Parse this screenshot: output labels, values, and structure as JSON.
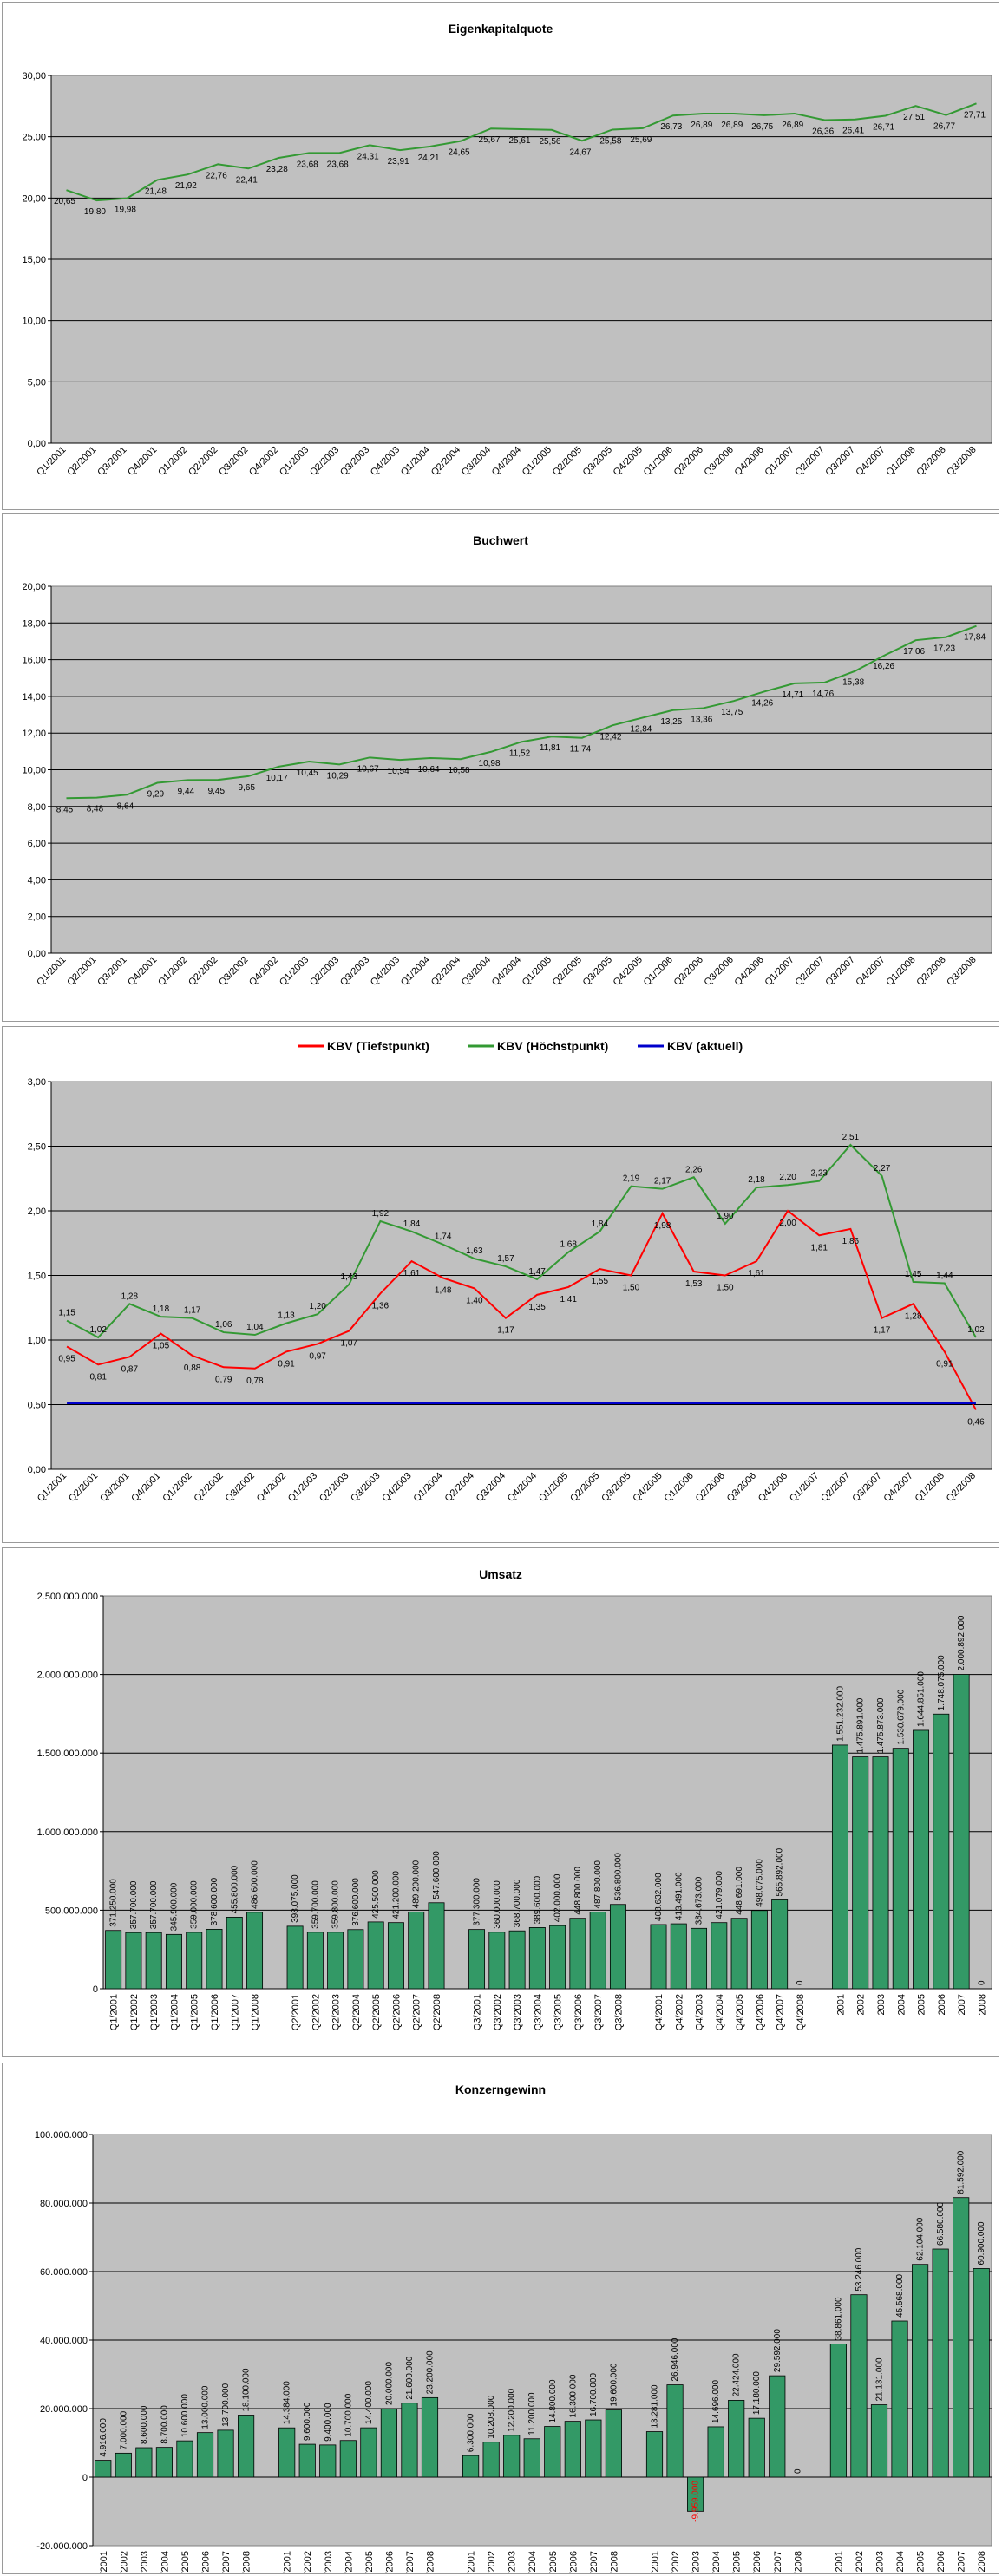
{
  "charts": [
    {
      "title": "Eigenkapitalquote",
      "chart_data": {
        "type": "line",
        "categories": [
          "Q1/2001",
          "Q2/2001",
          "Q3/2001",
          "Q4/2001",
          "Q1/2002",
          "Q2/2002",
          "Q3/2002",
          "Q4/2002",
          "Q1/2003",
          "Q2/2003",
          "Q3/2003",
          "Q4/2003",
          "Q1/2004",
          "Q2/2004",
          "Q3/2004",
          "Q4/2004",
          "Q1/2005",
          "Q2/2005",
          "Q3/2005",
          "Q4/2005",
          "Q1/2006",
          "Q2/2006",
          "Q3/2006",
          "Q4/2006",
          "Q1/2007",
          "Q2/2007",
          "Q3/2007",
          "Q4/2007",
          "Q1/2008",
          "Q2/2008",
          "Q3/2008"
        ],
        "x_tick_labels": [
          "Q1/2001",
          "Q2/2001",
          "Q3/2001",
          "Q4/2001",
          "Q1/2002",
          "Q2/2002",
          "Q3/2002",
          "Q4/2002",
          "Q1/2003",
          "Q2/2003",
          "Q3/2003",
          "Q4/2003",
          "Q1/2004",
          "Q2/2004",
          "Q3/2004",
          "Q4/2004",
          "Q1/2005",
          "Q2/2005",
          "Q3/2005",
          "Q4/2005",
          "Q1/2006",
          "Q2/2006",
          "Q3/2006",
          "Q4/2006",
          "Q1/2007",
          "Q2/2007",
          "Q3/2007",
          "Q4/2007",
          "Q1/2008",
          "Q2/2008",
          "Q3/2008"
        ],
        "series": [
          {
            "values": [
              20.65,
              19.8,
              19.98,
              21.48,
              21.92,
              22.76,
              22.41,
              23.28,
              23.68,
              23.68,
              24.31,
              23.91,
              24.21,
              24.65,
              25.67,
              25.61,
              25.56,
              24.67,
              25.58,
              25.69,
              26.73,
              26.89,
              26.89,
              26.75,
              26.89,
              26.36,
              26.41,
              26.71,
              27.51,
              26.77,
              27.71
            ],
            "labels": [
              "20,65",
              "19,80",
              "19,98",
              "21,48",
              "21,92",
              "22,76",
              "22,41",
              "23,28",
              "23,68",
              "23,68",
              "24,31",
              "23,91",
              "24,21",
              "24,65",
              "25,67",
              "25,61",
              "25,56",
              "24,67",
              "25,58",
              "25,69",
              "26,73",
              "26,89",
              "26,89",
              "26,75",
              "26,89",
              "26,36",
              "26,41",
              "26,71",
              "27,51",
              "26,77",
              "27,71"
            ],
            "color": "#339933"
          }
        ],
        "y_ticks": [
          "0,00",
          "5,00",
          "10,00",
          "15,00",
          "20,00",
          "25,00",
          "30,00"
        ],
        "ylim": [
          0,
          30
        ]
      }
    },
    {
      "title": "Buchwert",
      "chart_data": {
        "type": "line",
        "categories": [
          "Q1/2001",
          "Q2/2001",
          "Q3/2001",
          "Q4/2001",
          "Q1/2002",
          "Q2/2002",
          "Q3/2002",
          "Q4/2002",
          "Q1/2003",
          "Q2/2003",
          "Q3/2003",
          "Q4/2003",
          "Q1/2004",
          "Q2/2004",
          "Q3/2004",
          "Q4/2004",
          "Q1/2005",
          "Q2/2005",
          "Q3/2005",
          "Q4/2005",
          "Q1/2006",
          "Q2/2006",
          "Q3/2006",
          "Q4/2006",
          "Q1/2007",
          "Q2/2007",
          "Q3/2007",
          "Q4/2007",
          "Q1/2008",
          "Q2/2008",
          "Q3/2008"
        ],
        "x_tick_labels": [
          "Q1/2001",
          "Q2/2001",
          "Q3/2001",
          "Q4/2001",
          "Q1/2002",
          "Q2/2002",
          "Q3/2002",
          "Q4/2002",
          "Q1/2003",
          "Q2/2003",
          "Q3/2003",
          "Q4/2003",
          "Q1/2004",
          "Q2/2004",
          "Q3/2004",
          "Q4/2004",
          "Q1/2005",
          "Q2/2005",
          "Q3/2005",
          "Q4/2005",
          "Q1/2006",
          "Q2/2006",
          "Q3/2006",
          "Q4/2006",
          "Q1/2007",
          "Q2/2007",
          "Q3/2007",
          "Q4/2007",
          "Q1/2008",
          "Q2/2008",
          "Q3/2008"
        ],
        "series": [
          {
            "values": [
              8.45,
              8.48,
              8.64,
              9.29,
              9.44,
              9.45,
              9.65,
              10.17,
              10.45,
              10.29,
              10.67,
              10.54,
              10.64,
              10.58,
              10.98,
              11.52,
              11.81,
              11.74,
              12.42,
              12.84,
              13.25,
              13.36,
              13.75,
              14.26,
              14.71,
              14.76,
              15.38,
              16.26,
              17.06,
              17.23,
              17.84
            ],
            "labels": [
              "8,45",
              "8,48",
              "8,64",
              "9,29",
              "9,44",
              "9,45",
              "9,65",
              "10,17",
              "10,45",
              "10,29",
              "10,67",
              "10,54",
              "10,64",
              "10,58",
              "10,98",
              "11,52",
              "11,81",
              "11,74",
              "12,42",
              "12,84",
              "13,25",
              "13,36",
              "13,75",
              "14,26",
              "14,71",
              "14,76",
              "15,38",
              "16,26",
              "17,06",
              "17,23",
              "17,84"
            ],
            "color": "#339933"
          }
        ],
        "y_ticks": [
          "0,00",
          "2,00",
          "4,00",
          "6,00",
          "8,00",
          "10,00",
          "12,00",
          "14,00",
          "16,00",
          "18,00",
          "20,00"
        ],
        "ylim": [
          0,
          20
        ]
      }
    },
    {
      "title": "",
      "chart_data": {
        "type": "line",
        "categories": [
          "Q1/2001",
          "Q2/2001",
          "Q3/2001",
          "Q4/2001",
          "Q1/2002",
          "Q2/2002",
          "Q3/2002",
          "Q4/2002",
          "Q1/2003",
          "Q2/2003",
          "Q3/2003",
          "Q4/2003",
          "Q1/2004",
          "Q2/2004",
          "Q3/2004",
          "Q4/2004",
          "Q1/2005",
          "Q2/2005",
          "Q3/2005",
          "Q4/2005",
          "Q1/2006",
          "Q2/2006",
          "Q3/2006",
          "Q4/2006",
          "Q1/2007",
          "Q2/2007",
          "Q3/2007",
          "Q4/2007",
          "Q1/2008",
          "Q2/2008"
        ],
        "x_tick_labels": [
          "Q1/2001",
          "Q2/2001",
          "Q3/2001",
          "Q4/2001",
          "Q1/2002",
          "Q2/2002",
          "Q3/2002",
          "Q4/2002",
          "Q1/2003",
          "Q2/2003",
          "Q3/2003",
          "Q4/2003",
          "Q1/2004",
          "Q2/2004",
          "Q3/2004",
          "Q4/2004",
          "Q1/2005",
          "Q2/2005",
          "Q3/2005",
          "Q4/2005",
          "Q1/2006",
          "Q2/2006",
          "Q3/2006",
          "Q4/2006",
          "Q1/2007",
          "Q2/2007",
          "Q3/2007",
          "Q4/2007",
          "Q1/2008",
          "Q2/2008"
        ],
        "legend": [
          "KBV (Tiefstpunkt)",
          "KBV (Höchstpunkt)",
          "KBV (aktuell)"
        ],
        "legend_position": "top",
        "series": [
          {
            "name": "KBV (Tiefstpunkt)",
            "color": "#ff0000",
            "values": [
              0.95,
              0.81,
              0.87,
              1.05,
              0.88,
              0.79,
              0.78,
              0.91,
              0.97,
              1.07,
              1.36,
              1.61,
              1.48,
              1.4,
              1.17,
              1.35,
              1.41,
              1.55,
              1.5,
              1.98,
              1.53,
              1.5,
              1.61,
              2.0,
              1.81,
              1.86,
              1.17,
              1.28,
              0.91,
              0.46
            ],
            "labels": [
              "0,95",
              "0,81",
              "0,87",
              "1,05",
              "0,88",
              "0,79",
              "0,78",
              "0,91",
              "0,97",
              "1,07",
              "1,36",
              "1,61",
              "1,48",
              "1,40",
              "1,17",
              "1,35",
              "1,41",
              "1,55",
              "1,50",
              "1,98",
              "1,53",
              "1,50",
              "1,61",
              "2,00",
              "1,81",
              "1,86",
              "1,17",
              "1,28",
              "0,91",
              "0,46"
            ]
          },
          {
            "name": "KBV (Höchstpunkt)",
            "color": "#339933",
            "values": [
              1.15,
              1.02,
              1.28,
              1.18,
              1.17,
              1.06,
              1.04,
              1.13,
              1.2,
              1.43,
              1.92,
              1.84,
              1.74,
              1.63,
              1.57,
              1.47,
              1.68,
              1.84,
              2.19,
              2.17,
              2.26,
              1.9,
              2.18,
              2.2,
              2.23,
              2.51,
              2.27,
              1.45,
              1.44,
              1.02
            ],
            "labels": [
              "1,15",
              "1,02",
              "1,28",
              "1,18",
              "1,17",
              "1,06",
              "1,04",
              "1,13",
              "1,20",
              "1,43",
              "1,92",
              "1,84",
              "1,74",
              "1,63",
              "1,57",
              "1,47",
              "1,68",
              "1,84",
              "2,19",
              "2,17",
              "2,26",
              "1,90",
              "2,18",
              "2,20",
              "2,23",
              "2,51",
              "2,27",
              "1,45",
              "1,44",
              "1,02"
            ]
          },
          {
            "name": "KBV (aktuell)",
            "color": "#0000cc",
            "values": [
              0.51,
              0.51,
              0.51,
              0.51,
              0.51,
              0.51,
              0.51,
              0.51,
              0.51,
              0.51,
              0.51,
              0.51,
              0.51,
              0.51,
              0.51,
              0.51,
              0.51,
              0.51,
              0.51,
              0.51,
              0.51,
              0.51,
              0.51,
              0.51,
              0.51,
              0.51,
              0.51,
              0.51,
              0.51,
              0.51
            ],
            "labels": []
          }
        ],
        "y_ticks": [
          "0,00",
          "0,50",
          "1,00",
          "1,50",
          "2,00",
          "2,50",
          "3,00"
        ],
        "ylim": [
          0,
          3
        ]
      }
    },
    {
      "title": "Umsatz",
      "chart_data": {
        "type": "bar",
        "categories": [
          "Q1/2001",
          "Q1/2002",
          "Q1/2003",
          "Q1/2004",
          "Q1/2005",
          "Q1/2006",
          "Q1/2007",
          "Q1/2008",
          "",
          "Q2/2001",
          "Q2/2002",
          "Q2/2003",
          "Q2/2004",
          "Q2/2005",
          "Q2/2006",
          "Q2/2007",
          "Q2/2008",
          "",
          "Q3/2001",
          "Q3/2002",
          "Q3/2003",
          "Q3/2004",
          "Q3/2005",
          "Q3/2006",
          "Q3/2007",
          "Q3/2008",
          "",
          "Q4/2001",
          "Q4/2002",
          "Q4/2003",
          "Q4/2004",
          "Q4/2005",
          "Q4/2006",
          "Q4/2007",
          "Q4/2008",
          "",
          "2001",
          "2002",
          "2003",
          "2004",
          "2005",
          "2006",
          "2007",
          "2008"
        ],
        "values": [
          371250000,
          357700000,
          357700000,
          345900000,
          359000000,
          378600000,
          455800000,
          486600000,
          null,
          398075000,
          359700000,
          359800000,
          376600000,
          425500000,
          421200000,
          489200000,
          547600000,
          null,
          377300000,
          360000000,
          368700000,
          389600000,
          402000000,
          448800000,
          487800000,
          536800000,
          null,
          408632000,
          413491000,
          384673000,
          421079000,
          448691000,
          498075000,
          565892000,
          0,
          null,
          1551232000,
          1475891000,
          1475873000,
          1530679000,
          1644851000,
          1748075000,
          2000892000,
          0
        ],
        "labels": [
          "371.250.000",
          "357.700.000",
          "357.700.000",
          "345.900.000",
          "359.000.000",
          "378.600.000",
          "455.800.000",
          "486.600.000",
          "",
          "398.075.000",
          "359.700.000",
          "359.800.000",
          "376.600.000",
          "425.500.000",
          "421.200.000",
          "489.200.000",
          "547.600.000",
          "",
          "377.300.000",
          "360.000.000",
          "368.700.000",
          "389.600.000",
          "402.000.000",
          "448.800.000",
          "487.800.000",
          "536.800.000",
          "",
          "408.632.000",
          "413.491.000",
          "384.673.000",
          "421.079.000",
          "448.691.000",
          "498.075.000",
          "565.892.000",
          "0",
          "",
          "1.551.232.000",
          "1.475.891.000",
          "1.475.873.000",
          "1.530.679.000",
          "1.644.851.000",
          "1.748.075.000",
          "2.000.892.000",
          "0"
        ],
        "y_ticks": [
          "0",
          "500.000.000",
          "1.000.000.000",
          "1.500.000.000",
          "2.000.000.000",
          "2.500.000.000"
        ],
        "ylim": [
          0,
          2500000000
        ],
        "bar_color": "#339966"
      }
    },
    {
      "title": "Konzerngewinn",
      "chart_data": {
        "type": "bar",
        "categories": [
          "Q1/2001",
          "Q1/2002",
          "Q1/2003",
          "Q1/2004",
          "Q1/2005",
          "Q1/2006",
          "Q1/2007",
          "Q1/2008",
          "",
          "Q2/2001",
          "Q2/2002",
          "Q2/2003",
          "Q2/2004",
          "Q2/2005",
          "Q2/2006",
          "Q2/2007",
          "Q2/2008",
          "",
          "Q3/2001",
          "Q3/2002",
          "Q3/2003",
          "Q3/2004",
          "Q3/2005",
          "Q3/2006",
          "Q3/2007",
          "Q3/2008",
          "",
          "Q4/2001",
          "Q4/2002",
          "Q4/2003",
          "Q4/2004",
          "Q4/2005",
          "Q4/2006",
          "Q4/2007",
          "Q4/2008",
          "",
          "2001",
          "2002",
          "2003",
          "2004",
          "2005",
          "2006",
          "2007",
          "2008"
        ],
        "values": [
          4916000,
          7000000,
          8600000,
          8700000,
          10600000,
          13000000,
          13700000,
          18100000,
          null,
          14384000,
          9600000,
          9400000,
          10700000,
          14400000,
          20000000,
          21600000,
          23200000,
          null,
          6300000,
          10208000,
          12200000,
          11200000,
          14800000,
          16300000,
          16700000,
          19600000,
          null,
          13281000,
          26946000,
          -9959000,
          14696000,
          22424000,
          17180000,
          29592000,
          0,
          null,
          38861000,
          53246000,
          21131000,
          45568000,
          62104000,
          66580000,
          81592000,
          60900000
        ],
        "labels": [
          "4.916.000",
          "7.000.000",
          "8.600.000",
          "8.700.000",
          "10.600.000",
          "13.000.000",
          "13.700.000",
          "18.100.000",
          "",
          "14.384.000",
          "9.600.000",
          "9.400.000",
          "10.700.000",
          "14.400.000",
          "20.000.000",
          "21.600.000",
          "23.200.000",
          "",
          "6.300.000",
          "10.208.000",
          "12.200.000",
          "11.200.000",
          "14.800.000",
          "16.300.000",
          "16.700.000",
          "19.600.000",
          "",
          "13.281.000",
          "26.946.000",
          "-9.959.000",
          "14.696.000",
          "22.424.000",
          "17.180.000",
          "29.592.000",
          "0",
          "",
          "38.861.000",
          "53.246.000",
          "21.131.000",
          "45.568.000",
          "62.104.000",
          "66.580.000",
          "81.592.000",
          "60.900.000"
        ],
        "y_ticks": [
          "-20.000.000",
          "0",
          "20.000.000",
          "40.000.000",
          "60.000.000",
          "80.000.000",
          "100.000.000"
        ],
        "ylim": [
          -20000000,
          100000000
        ],
        "bar_color": "#339966",
        "negative_label_color": "#ff0000"
      }
    }
  ],
  "colors": {
    "plot_bg": "#c0c0c0",
    "gridline": "#000000"
  }
}
